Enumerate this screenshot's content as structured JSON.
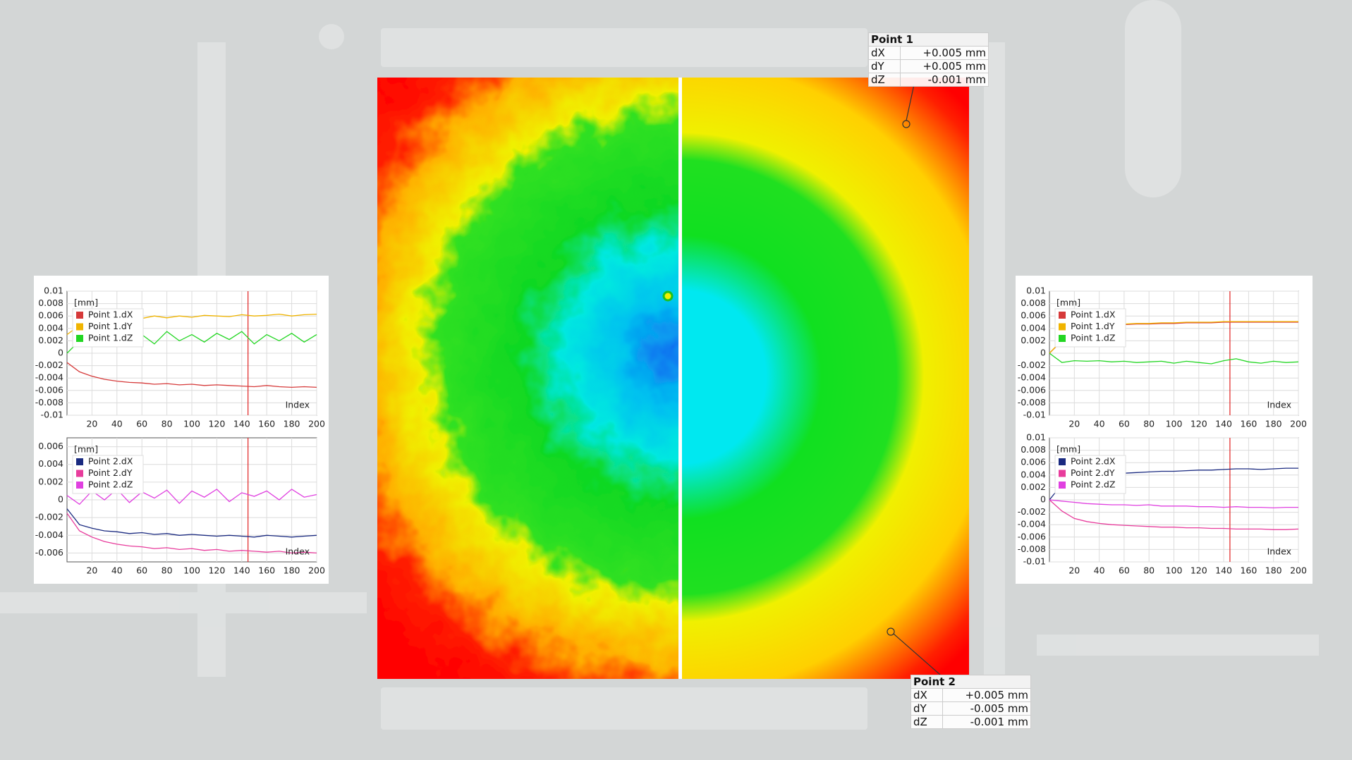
{
  "chart_data": [
    {
      "type": "line",
      "y_label": "[mm]",
      "x_label": "Index",
      "x": [
        0,
        10,
        20,
        30,
        40,
        50,
        60,
        70,
        80,
        90,
        100,
        110,
        120,
        130,
        140,
        150,
        160,
        170,
        180,
        190,
        200
      ],
      "xlim": [
        0,
        200
      ],
      "xticks": [
        20,
        40,
        60,
        80,
        100,
        120,
        140,
        160,
        180,
        200
      ],
      "ylim": [
        -0.01,
        0.01
      ],
      "yticks": [
        0.01,
        0.008,
        0.006,
        0.004,
        0.002,
        0,
        -0.002,
        -0.004,
        -0.006,
        -0.008,
        -0.01
      ],
      "grid": true,
      "cursor": 145,
      "series": [
        {
          "name": "Point 1.dX",
          "color": "#d63a3a",
          "values": [
            -0.0015,
            -0.003,
            -0.0037,
            -0.0042,
            -0.0045,
            -0.0047,
            -0.0048,
            -0.005,
            -0.0049,
            -0.0051,
            -0.005,
            -0.0052,
            -0.0051,
            -0.0052,
            -0.0053,
            -0.0054,
            -0.0052,
            -0.0054,
            -0.0055,
            -0.0054,
            -0.0055
          ]
        },
        {
          "name": "Point 1.dY",
          "color": "#f0b400",
          "values": [
            0.003,
            0.0045,
            0.005,
            0.0055,
            0.0052,
            0.0058,
            0.0056,
            0.006,
            0.0057,
            0.006,
            0.0058,
            0.0061,
            0.006,
            0.0059,
            0.0062,
            0.006,
            0.0061,
            0.0063,
            0.006,
            0.0062,
            0.0063
          ]
        },
        {
          "name": "Point 1.dZ",
          "color": "#22d622",
          "values": [
            0,
            0.002,
            0.003,
            0.0015,
            0.0035,
            0.002,
            0.003,
            0.0015,
            0.0035,
            0.002,
            0.003,
            0.0018,
            0.0032,
            0.0022,
            0.0035,
            0.0015,
            0.003,
            0.002,
            0.0032,
            0.0018,
            0.003
          ]
        }
      ]
    },
    {
      "type": "line",
      "y_label": "[mm]",
      "x_label": "Index",
      "x": [
        0,
        10,
        20,
        30,
        40,
        50,
        60,
        70,
        80,
        90,
        100,
        110,
        120,
        130,
        140,
        150,
        160,
        170,
        180,
        190,
        200
      ],
      "xlim": [
        0,
        200
      ],
      "xticks": [
        20,
        40,
        60,
        80,
        100,
        120,
        140,
        160,
        180,
        200
      ],
      "ylim": [
        -0.007,
        0.007
      ],
      "yticks": [
        0.006,
        0.004,
        0.002,
        0,
        -0.002,
        -0.004,
        -0.006
      ],
      "grid": true,
      "cursor": 145,
      "series": [
        {
          "name": "Point 2.dX",
          "color": "#1a2a80",
          "values": [
            -0.001,
            -0.0028,
            -0.0032,
            -0.0035,
            -0.0036,
            -0.0038,
            -0.0037,
            -0.0039,
            -0.0038,
            -0.004,
            -0.0039,
            -0.004,
            -0.0041,
            -0.004,
            -0.0041,
            -0.0042,
            -0.004,
            -0.0041,
            -0.0042,
            -0.0041,
            -0.004
          ]
        },
        {
          "name": "Point 2.dY",
          "color": "#e83c9c",
          "values": [
            -0.0015,
            -0.0035,
            -0.0042,
            -0.0047,
            -0.005,
            -0.0052,
            -0.0053,
            -0.0055,
            -0.0054,
            -0.0056,
            -0.0055,
            -0.0057,
            -0.0056,
            -0.0058,
            -0.0057,
            -0.0058,
            -0.0059,
            -0.0058,
            -0.006,
            -0.0059,
            -0.006
          ]
        },
        {
          "name": "Point 2.dZ",
          "color": "#e040e0",
          "values": [
            0.0005,
            -0.0005,
            0.001,
            0,
            0.0012,
            -0.0003,
            0.0009,
            0.0002,
            0.0011,
            -0.0004,
            0.001,
            0.0003,
            0.0012,
            -0.0002,
            0.0008,
            0.0004,
            0.001,
            0,
            0.0012,
            0.0003,
            0.0006
          ]
        }
      ]
    },
    {
      "type": "line",
      "y_label": "[mm]",
      "x_label": "Index",
      "x": [
        0,
        10,
        20,
        30,
        40,
        50,
        60,
        70,
        80,
        90,
        100,
        110,
        120,
        130,
        140,
        150,
        160,
        170,
        180,
        190,
        200
      ],
      "xlim": [
        0,
        200
      ],
      "xticks": [
        20,
        40,
        60,
        80,
        100,
        120,
        140,
        160,
        180,
        200
      ],
      "ylim": [
        -0.01,
        0.01
      ],
      "yticks": [
        0.01,
        0.008,
        0.006,
        0.004,
        0.002,
        0,
        -0.002,
        -0.004,
        -0.006,
        -0.008,
        -0.01
      ],
      "grid": true,
      "cursor": 145,
      "series": [
        {
          "name": "Point 1.dX",
          "color": "#d63a3a",
          "values": [
            0,
            0.002,
            0.0033,
            0.004,
            0.0043,
            0.0045,
            0.0046,
            0.0047,
            0.0047,
            0.0048,
            0.0048,
            0.0049,
            0.0049,
            0.0049,
            0.005,
            0.005,
            0.005,
            0.005,
            0.005,
            0.005,
            0.005
          ]
        },
        {
          "name": "Point 1.dY",
          "color": "#f0b400",
          "values": [
            0,
            0.0021,
            0.0034,
            0.0041,
            0.0044,
            0.0046,
            0.0047,
            0.0048,
            0.0048,
            0.0049,
            0.0049,
            0.005,
            0.005,
            0.005,
            0.0051,
            0.0051,
            0.0051,
            0.0051,
            0.0051,
            0.0051,
            0.0051
          ]
        },
        {
          "name": "Point 1.dZ",
          "color": "#22d622",
          "values": [
            0,
            -0.0015,
            -0.0012,
            -0.0013,
            -0.0012,
            -0.0014,
            -0.0013,
            -0.0015,
            -0.0014,
            -0.0013,
            -0.0016,
            -0.0013,
            -0.0015,
            -0.0017,
            -0.0012,
            -0.0009,
            -0.0014,
            -0.0016,
            -0.0013,
            -0.0015,
            -0.0014
          ]
        }
      ]
    },
    {
      "type": "line",
      "y_label": "[mm]",
      "x_label": "Index",
      "x": [
        0,
        10,
        20,
        30,
        40,
        50,
        60,
        70,
        80,
        90,
        100,
        110,
        120,
        130,
        140,
        150,
        160,
        170,
        180,
        190,
        200
      ],
      "xlim": [
        0,
        200
      ],
      "xticks": [
        20,
        40,
        60,
        80,
        100,
        120,
        140,
        160,
        180,
        200
      ],
      "ylim": [
        -0.01,
        0.01
      ],
      "yticks": [
        0.01,
        0.008,
        0.006,
        0.004,
        0.002,
        0,
        -0.002,
        -0.004,
        -0.006,
        -0.008,
        -0.01
      ],
      "grid": true,
      "cursor": 145,
      "series": [
        {
          "name": "Point 2.dX",
          "color": "#1a2a80",
          "values": [
            0,
            0.0025,
            0.0035,
            0.0038,
            0.004,
            0.0042,
            0.0043,
            0.0044,
            0.0045,
            0.0046,
            0.0046,
            0.0047,
            0.0048,
            0.0048,
            0.0049,
            0.005,
            0.005,
            0.0049,
            0.005,
            0.0051,
            0.0051
          ]
        },
        {
          "name": "Point 2.dY",
          "color": "#e83c9c",
          "values": [
            0,
            -0.0018,
            -0.003,
            -0.0035,
            -0.0038,
            -0.004,
            -0.0041,
            -0.0042,
            -0.0043,
            -0.0044,
            -0.0044,
            -0.0045,
            -0.0045,
            -0.0046,
            -0.0046,
            -0.0047,
            -0.0047,
            -0.0047,
            -0.0048,
            -0.0048,
            -0.0047
          ]
        },
        {
          "name": "Point 2.dZ",
          "color": "#e040e0",
          "values": [
            0,
            -0.0002,
            -0.0004,
            -0.0006,
            -0.0007,
            -0.0008,
            -0.0008,
            -0.0009,
            -0.0008,
            -0.001,
            -0.001,
            -0.001,
            -0.0011,
            -0.0011,
            -0.0012,
            -0.0011,
            -0.0012,
            -0.0012,
            -0.0013,
            -0.0012,
            -0.0012
          ]
        }
      ]
    }
  ],
  "point_tables": [
    {
      "title": "Point 1",
      "rows": [
        [
          "dX",
          "+0.005 mm"
        ],
        [
          "dY",
          "+0.005 mm"
        ],
        [
          "dZ",
          "-0.001 mm"
        ]
      ]
    },
    {
      "title": "Point 2",
      "rows": [
        [
          "dX",
          "+0.005 mm"
        ],
        [
          "dY",
          "-0.005 mm"
        ],
        [
          "dZ",
          "-0.001 mm"
        ]
      ]
    }
  ]
}
